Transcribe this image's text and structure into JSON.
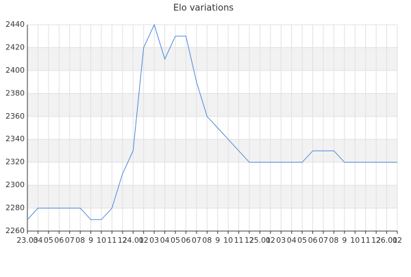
{
  "chart_data": {
    "type": "line",
    "title": "Elo variations",
    "categories": [
      "23.03",
      "04",
      "05",
      "06",
      "07",
      "08",
      "9",
      "10",
      "11",
      "12",
      "24.01",
      "02",
      "03",
      "04",
      "05",
      "06",
      "07",
      "08",
      "9",
      "10",
      "11",
      "12",
      "25.01",
      "02",
      "03",
      "04",
      "05",
      "06",
      "07",
      "08",
      "9",
      "10",
      "11",
      "12",
      "26.01",
      "02"
    ],
    "series": [
      {
        "name": "Elo",
        "color": "#4a86d8",
        "values": [
          2270,
          2280,
          2280,
          2280,
          2280,
          2280,
          2270,
          2270,
          2280,
          2310,
          2330,
          2420,
          2440,
          2410,
          2430,
          2430,
          2390,
          2360,
          2350,
          2340,
          2330,
          2320,
          2320,
          2320,
          2320,
          2320,
          2320,
          2330,
          2330,
          2330,
          2320,
          2320,
          2320,
          2320,
          2320,
          2320
        ]
      }
    ],
    "ylim": [
      2260,
      2440
    ],
    "yticks": [
      2260,
      2280,
      2300,
      2320,
      2340,
      2360,
      2380,
      2400,
      2420,
      2440
    ],
    "grid": true
  }
}
